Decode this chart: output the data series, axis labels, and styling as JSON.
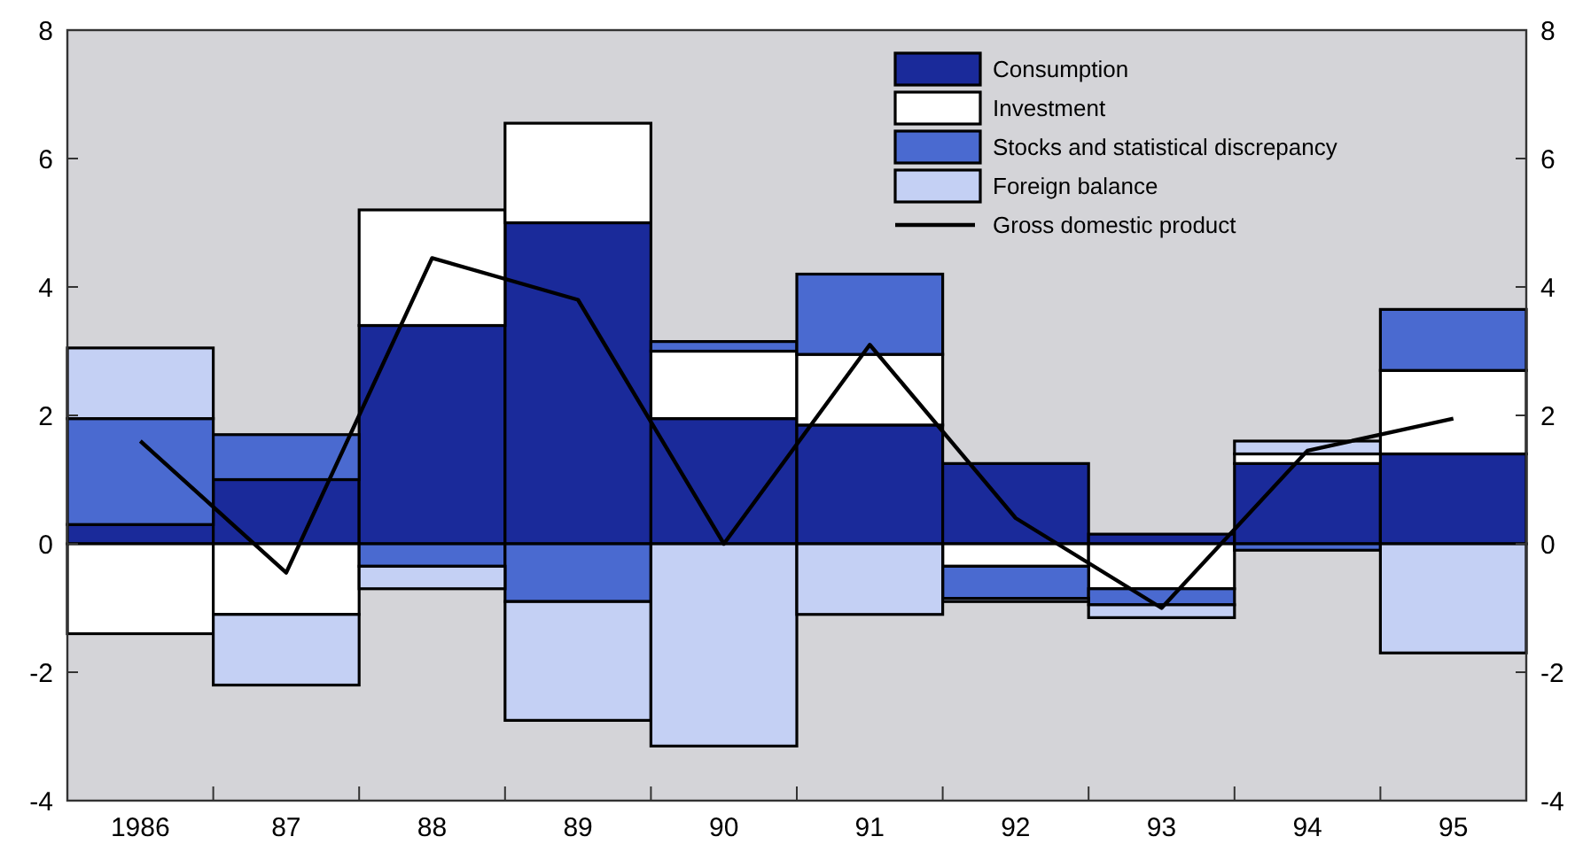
{
  "chart_data": {
    "type": "bar",
    "stacked": true,
    "categories": [
      "1986",
      "87",
      "88",
      "89",
      "90",
      "91",
      "92",
      "93",
      "94",
      "95"
    ],
    "series": [
      {
        "name": "Consumption",
        "color": "#1a2a9a",
        "values": [
          0.3,
          1.0,
          3.4,
          5.0,
          1.95,
          1.85,
          1.25,
          0.15,
          1.25,
          1.4
        ]
      },
      {
        "name": "Investment",
        "color": "#ffffff",
        "values": [
          -1.4,
          -1.1,
          1.8,
          1.55,
          1.05,
          1.1,
          -0.35,
          -0.7,
          0.15,
          1.3
        ]
      },
      {
        "name": "Stocks and statistical discrepancy",
        "color": "#4a6ad0",
        "values": [
          1.65,
          0.7,
          -0.35,
          -0.9,
          0.15,
          1.25,
          -0.5,
          -0.25,
          -0.1,
          0.95
        ]
      },
      {
        "name": "Foreign balance",
        "color": "#c4d0f4",
        "values": [
          1.1,
          -1.1,
          -0.35,
          -1.85,
          -3.15,
          -1.1,
          -0.05,
          -0.2,
          0.2,
          -1.7
        ]
      },
      {
        "name": "Gross domestic product",
        "type": "line",
        "color": "#000000",
        "values": [
          1.6,
          -0.45,
          4.45,
          3.8,
          0,
          3.1,
          0.4,
          -1.0,
          1.45,
          1.95
        ]
      }
    ],
    "ylim": [
      -4,
      8
    ],
    "yticks": [
      -4,
      -2,
      0,
      2,
      4,
      6,
      8
    ],
    "y2lim": [
      -4,
      8
    ],
    "y2ticks": [
      -4,
      -2,
      0,
      2,
      4,
      6,
      8
    ],
    "legend": "top right",
    "grid": false,
    "marker": "none",
    "line_style": "solid"
  }
}
